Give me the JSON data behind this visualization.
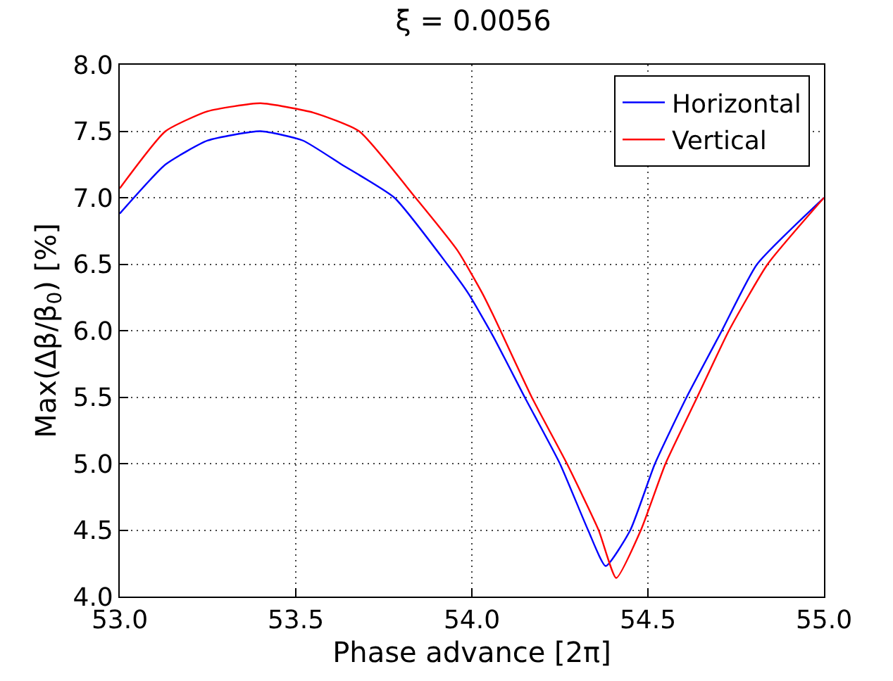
{
  "chart_data": {
    "type": "line",
    "title": "ξ = 0.0056",
    "xlabel": "Phase advance [2π]",
    "ylabel": "Max(Δβ/β$_{0}$) [%]",
    "xlim": [
      53.0,
      55.0
    ],
    "xticks": [
      {
        "value": 53.0,
        "label": "53.0"
      },
      53.5,
      {
        "value": 54.0,
        "label": "54.0"
      },
      54.5,
      {
        "value": 55.0,
        "label": "55.0"
      }
    ],
    "ylim": [
      4.0,
      8.0
    ],
    "yticks": [
      {
        "value": 4.0,
        "label": "4.0"
      },
      4.5,
      {
        "value": 5.0,
        "label": "5.0"
      },
      5.5,
      {
        "value": 6.0,
        "label": "6.0"
      },
      6.5,
      {
        "value": 7.0,
        "label": "7.0"
      },
      7.5,
      {
        "value": 8.0,
        "label": "8.0"
      }
    ],
    "grid": true,
    "legend": "top right",
    "marker": "none",
    "line_style": "solid",
    "series": [
      {
        "name": "Horizontal",
        "color": "#0000ff",
        "x": [
          53.0,
          53.13,
          53.25,
          53.4,
          53.52,
          53.63,
          53.78,
          53.93,
          53.99,
          54.06,
          54.15,
          54.25,
          54.33,
          54.38,
          54.45,
          54.52,
          54.61,
          54.71,
          54.81,
          55.0
        ],
        "values": [
          6.88,
          7.25,
          7.43,
          7.5,
          7.43,
          7.25,
          7.0,
          6.5,
          6.28,
          5.96,
          5.5,
          5.0,
          4.5,
          4.23,
          4.5,
          5.0,
          5.5,
          6.0,
          6.5,
          7.0
        ]
      },
      {
        "name": "Vertical",
        "color": "#ff0000",
        "x": [
          53.0,
          53.13,
          53.25,
          53.4,
          53.55,
          53.68,
          53.84,
          53.96,
          54.03,
          54.06,
          54.17,
          54.27,
          54.36,
          54.41,
          54.48,
          54.55,
          54.64,
          54.73,
          54.84,
          55.0
        ],
        "values": [
          7.07,
          7.5,
          7.65,
          7.71,
          7.64,
          7.5,
          7.0,
          6.6,
          6.28,
          6.12,
          5.5,
          5.0,
          4.5,
          4.14,
          4.5,
          5.0,
          5.5,
          6.0,
          6.5,
          7.0
        ]
      }
    ]
  }
}
